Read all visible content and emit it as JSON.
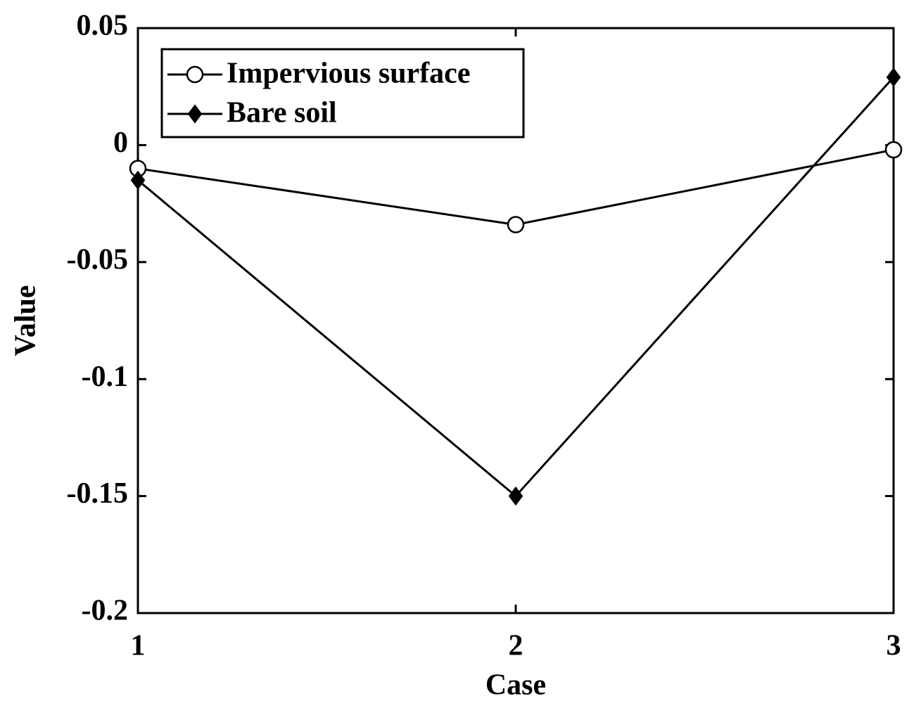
{
  "chart_data": {
    "type": "line",
    "xlabel": "Case",
    "ylabel": "Value",
    "x": [
      1,
      2,
      3
    ],
    "series": [
      {
        "name": "Impervious surface",
        "color": "#000000",
        "marker": "circle",
        "values": [
          -0.01,
          -0.034,
          -0.002
        ]
      },
      {
        "name": "Bare soil",
        "color": "#000000",
        "marker": "diamond",
        "values": [
          -0.015,
          -0.15,
          0.029
        ]
      }
    ],
    "xlim": [
      1,
      3
    ],
    "xticks": [
      1,
      2,
      3
    ],
    "ylim": [
      -0.2,
      0.05
    ],
    "yticks": [
      -0.2,
      -0.15,
      -0.1,
      -0.05,
      0,
      0.05
    ],
    "legend": "upper left"
  }
}
